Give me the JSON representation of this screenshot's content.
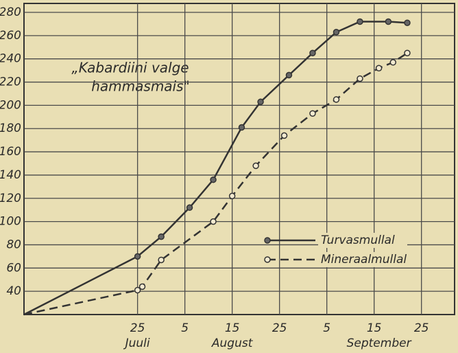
{
  "chart_data": {
    "type": "line",
    "annotation": [
      "„Kabardiini valge",
      "hammasmais\""
    ],
    "xlim": [
      1,
      92
    ],
    "ylim": [
      20,
      280
    ],
    "xticks": [
      {
        "value": 25,
        "label": "25"
      },
      {
        "value": 35,
        "label": "5"
      },
      {
        "value": 45,
        "label": "15"
      },
      {
        "value": 55,
        "label": "25"
      },
      {
        "value": 65,
        "label": "5"
      },
      {
        "value": 75,
        "label": "15"
      },
      {
        "value": 85,
        "label": "25"
      }
    ],
    "month_labels": [
      {
        "value": 25,
        "label": "Juuli"
      },
      {
        "value": 45,
        "label": "August"
      },
      {
        "value": 76,
        "label": "September"
      }
    ],
    "yticks": [
      40,
      60,
      80,
      100,
      120,
      140,
      160,
      180,
      200,
      220,
      240,
      260,
      280
    ],
    "grid": true,
    "legend": "lower right",
    "series": [
      {
        "name": "Turvasmullal",
        "color": "#333333",
        "marker": "filled",
        "dash": false,
        "x": [
          1,
          25,
          30,
          36,
          41,
          47,
          51,
          57,
          62,
          67,
          72,
          78,
          82
        ],
        "values": [
          20,
          70,
          87,
          112,
          136,
          181,
          203,
          226,
          245,
          263,
          272,
          272,
          271
        ]
      },
      {
        "name": "Mineraalmullal",
        "color": "#333333",
        "marker": "open",
        "dash": true,
        "x": [
          1,
          25,
          26,
          30,
          41,
          45,
          50,
          56,
          62,
          67,
          72,
          76,
          79,
          82
        ],
        "values": [
          20,
          41,
          44,
          67,
          100,
          122,
          148,
          174,
          193,
          205,
          223,
          232,
          237,
          245
        ]
      }
    ]
  }
}
